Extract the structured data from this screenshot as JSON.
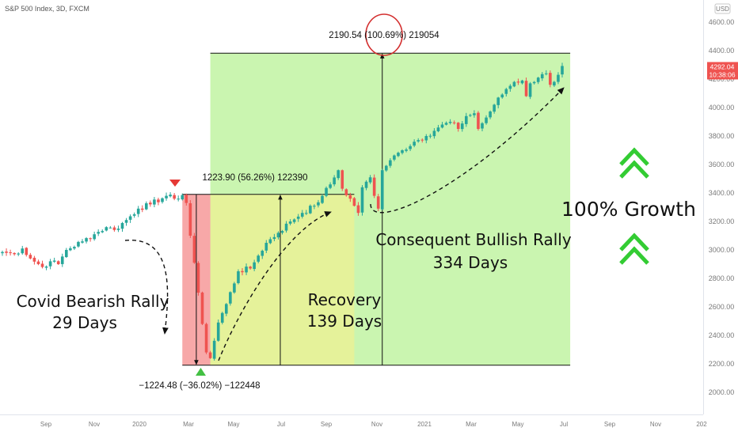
{
  "header": {
    "symbol_title": "S&P 500 Index, 3D, FXCM",
    "currency_badge": "USD"
  },
  "price_tag": {
    "price": "4292.04",
    "countdown": "10:38:06"
  },
  "annotations": {
    "bearish_label": "Covid Bearish Rally",
    "bearish_days": "29 Days",
    "recovery_label": "Recovery",
    "recovery_days": "139 Days",
    "bullish_label": "Consequent Bullish Rally",
    "bullish_days": "334 Days",
    "growth_label": "100% Growth",
    "drop_measure": "−1224.48 (−36.02%) −122448",
    "recovery_measure": "1223.90 (56.26%) 122390",
    "full_measure_a": "2190.54 ",
    "full_measure_b": "(100.69%)",
    "full_measure_c": " 219054"
  },
  "colors": {
    "bull": "#26a69a",
    "bear": "#ef5350",
    "bearish_zone": "#f7a8a8",
    "recovery_zone": "#e5f29a",
    "bullish_zone": "#caf5b0",
    "price_tag": "#ef5350",
    "growth_arrows": "#33cc33",
    "circle": "#d32f2f"
  },
  "chart_data": {
    "type": "candlestick",
    "title": "S&P 500 Index, 3D, FXCM",
    "currency": "USD",
    "y_ticks": [
      2000,
      2200,
      2400,
      2600,
      2800,
      3000,
      3200,
      3400,
      3600,
      3800,
      4000,
      4200,
      4400,
      4600
    ],
    "y_tick_labels": [
      "2000.00",
      "2200.00",
      "2400.00",
      "2600.00",
      "2800.00",
      "3000.00",
      "3200.00",
      "3400.00",
      "3600.00",
      "3800.00",
      "4000.00",
      "4200.00",
      "4400.00",
      "4600.00"
    ],
    "x_ticks": [
      "Sep",
      "Nov",
      "2020",
      "Mar",
      "May",
      "Jul",
      "Sep",
      "Nov",
      "2021",
      "Mar",
      "May",
      "Jul",
      "Sep",
      "Nov",
      "202"
    ],
    "ylim": [
      1920,
      4760
    ],
    "last_price": 4292.04,
    "price_waypoints": [
      [
        0,
        2985
      ],
      [
        3,
        2970
      ],
      [
        5,
        3010
      ],
      [
        7,
        2940
      ],
      [
        10,
        2880
      ],
      [
        12,
        2920
      ],
      [
        14,
        2900
      ],
      [
        16,
        3000
      ],
      [
        20,
        3060
      ],
      [
        23,
        3110
      ],
      [
        26,
        3160
      ],
      [
        28,
        3140
      ],
      [
        31,
        3210
      ],
      [
        34,
        3290
      ],
      [
        37,
        3320
      ],
      [
        41,
        3380
      ],
      [
        43,
        3360
      ],
      [
        45,
        3385
      ],
      [
        46,
        3330
      ],
      [
        47,
        3100
      ],
      [
        48,
        2910
      ],
      [
        49,
        2700
      ],
      [
        50,
        2480
      ],
      [
        51,
        2280
      ],
      [
        52,
        2240
      ],
      [
        54,
        2490
      ],
      [
        56,
        2620
      ],
      [
        59,
        2850
      ],
      [
        62,
        2870
      ],
      [
        64,
        2960
      ],
      [
        66,
        3050
      ],
      [
        69,
        3120
      ],
      [
        72,
        3200
      ],
      [
        75,
        3260
      ],
      [
        78,
        3310
      ],
      [
        80,
        3380
      ],
      [
        82,
        3460
      ],
      [
        84,
        3560
      ],
      [
        85,
        3430
      ],
      [
        87,
        3360
      ],
      [
        88,
        3310
      ],
      [
        89,
        3260
      ],
      [
        90,
        3440
      ],
      [
        92,
        3510
      ],
      [
        93,
        3380
      ],
      [
        94,
        3290
      ],
      [
        95,
        3560
      ],
      [
        97,
        3630
      ],
      [
        100,
        3700
      ],
      [
        103,
        3760
      ],
      [
        106,
        3800
      ],
      [
        109,
        3860
      ],
      [
        112,
        3900
      ],
      [
        114,
        3850
      ],
      [
        116,
        3940
      ],
      [
        118,
        3960
      ],
      [
        119,
        3850
      ],
      [
        121,
        3930
      ],
      [
        123,
        4020
      ],
      [
        126,
        4130
      ],
      [
        128,
        4180
      ],
      [
        130,
        4190
      ],
      [
        131,
        4080
      ],
      [
        132,
        4170
      ],
      [
        134,
        4210
      ],
      [
        136,
        4240
      ],
      [
        137,
        4160
      ],
      [
        139,
        4230
      ],
      [
        140,
        4292.04
      ]
    ],
    "zones": [
      {
        "name": "Covid Bearish Rally",
        "days": 29,
        "candle_from": 45,
        "candle_to": 52,
        "price_from": 2190,
        "price_to": 3390
      },
      {
        "name": "Recovery",
        "days": 139,
        "candle_from": 52,
        "candle_to": 88,
        "price_from": 2190,
        "price_to": 3390
      },
      {
        "name": "Consequent Bullish Rally",
        "days": 334,
        "candle_from": 52,
        "candle_to": 142,
        "price_from": 2190,
        "price_to": 4382
      }
    ],
    "measurements": [
      {
        "label": "−1224.48 (−36.02%) −122448",
        "change": -1224.48,
        "percent": -36.02
      },
      {
        "label": "1223.90 (56.26%) 122390",
        "change": 1223.9,
        "percent": 56.26
      },
      {
        "label": "2190.54 (100.69%) 219054",
        "change": 2190.54,
        "percent": 100.69
      }
    ]
  }
}
